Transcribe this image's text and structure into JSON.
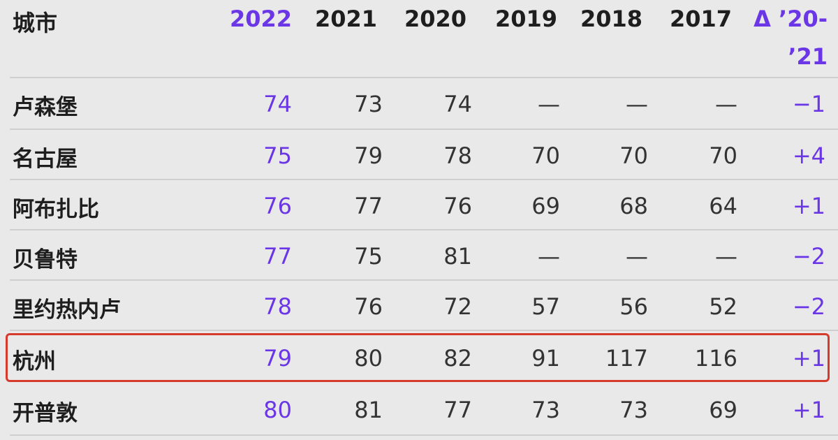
{
  "header": {
    "city": "城市",
    "years": [
      "2022",
      "2021",
      "2020",
      "2019",
      "2018",
      "2017"
    ],
    "delta_line1": "Δ ’20-",
    "delta_line2": "’21"
  },
  "rows": [
    {
      "city": "卢森堡",
      "v2022": "74",
      "v2021": "73",
      "v2020": "74",
      "v2019": "—",
      "v2018": "—",
      "v2017": "—",
      "delta": "−1"
    },
    {
      "city": "名古屋",
      "v2022": "75",
      "v2021": "79",
      "v2020": "78",
      "v2019": "70",
      "v2018": "70",
      "v2017": "70",
      "delta": "+4"
    },
    {
      "city": "阿布扎比",
      "v2022": "76",
      "v2021": "77",
      "v2020": "76",
      "v2019": "69",
      "v2018": "68",
      "v2017": "64",
      "delta": "+1"
    },
    {
      "city": "贝鲁特",
      "v2022": "77",
      "v2021": "75",
      "v2020": "81",
      "v2019": "—",
      "v2018": "—",
      "v2017": "—",
      "delta": "−2"
    },
    {
      "city": "里约热内卢",
      "v2022": "78",
      "v2021": "76",
      "v2020": "72",
      "v2019": "57",
      "v2018": "56",
      "v2017": "52",
      "delta": "−2"
    },
    {
      "city": "杭州",
      "v2022": "79",
      "v2021": "80",
      "v2020": "82",
      "v2019": "91",
      "v2018": "117",
      "v2017": "116",
      "delta": "+1"
    },
    {
      "city": "开普敦",
      "v2022": "80",
      "v2021": "81",
      "v2020": "77",
      "v2019": "73",
      "v2018": "73",
      "v2017": "69",
      "delta": "+1"
    }
  ],
  "highlighted_row": "杭州",
  "colors": {
    "accent": "#6a36e6",
    "highlight_border": "#d63a2a",
    "background": "#e9e9e9"
  }
}
